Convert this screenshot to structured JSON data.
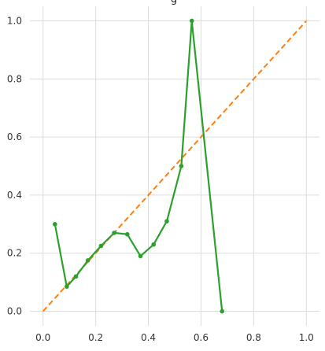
{
  "chart_data": {
    "type": "line",
    "title": "",
    "title_fragment": "g",
    "xlabel": "",
    "ylabel": "",
    "xlim": [
      -0.05,
      1.05
    ],
    "ylim": [
      -0.05,
      1.05
    ],
    "grid": true,
    "x_ticks": [
      0.0,
      0.2,
      0.4,
      0.6,
      0.8,
      1.0
    ],
    "x_tick_labels": [
      "0.0",
      "0.2",
      "0.4",
      "0.6",
      "0.8",
      "1.0"
    ],
    "y_ticks": [
      0.0,
      0.2,
      0.4,
      0.6,
      0.8,
      1.0
    ],
    "y_tick_labels": [
      "0.0",
      "0.2",
      "0.4",
      "0.6",
      "0.8",
      "1.0"
    ],
    "series": [
      {
        "style": "dashed",
        "color": "#ff7f0e",
        "x": [
          0.0,
          1.0
        ],
        "y": [
          0.0,
          1.0
        ]
      },
      {
        "style": "solid-markers",
        "color": "#2ca02c",
        "x": [
          0.045,
          0.09,
          0.125,
          0.17,
          0.22,
          0.27,
          0.32,
          0.37,
          0.42,
          0.47,
          0.525,
          0.565,
          0.68
        ],
        "y": [
          0.3,
          0.085,
          0.12,
          0.175,
          0.225,
          0.27,
          0.265,
          0.19,
          0.23,
          0.31,
          0.5,
          1.0,
          0.0
        ]
      }
    ]
  }
}
